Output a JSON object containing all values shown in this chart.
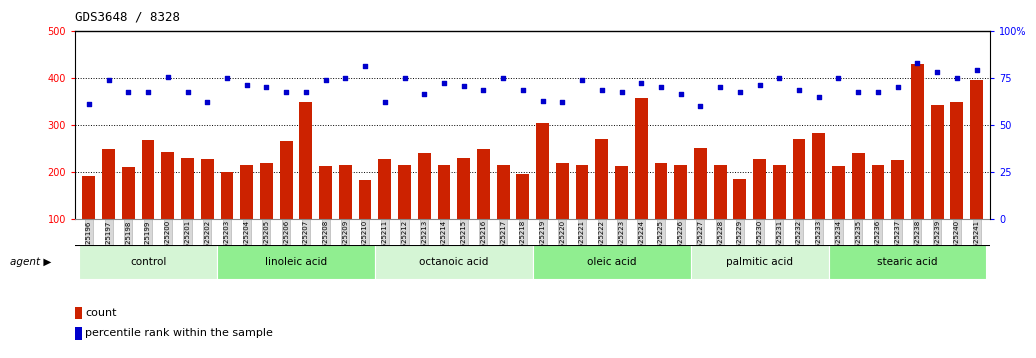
{
  "title": "GDS3648 / 8328",
  "samples": [
    "GSM525196",
    "GSM525197",
    "GSM525198",
    "GSM525199",
    "GSM525200",
    "GSM525201",
    "GSM525202",
    "GSM525203",
    "GSM525204",
    "GSM525205",
    "GSM525206",
    "GSM525207",
    "GSM525208",
    "GSM525209",
    "GSM525210",
    "GSM525211",
    "GSM525212",
    "GSM525213",
    "GSM525214",
    "GSM525215",
    "GSM525216",
    "GSM525217",
    "GSM525218",
    "GSM525219",
    "GSM525220",
    "GSM525221",
    "GSM525222",
    "GSM525223",
    "GSM525224",
    "GSM525225",
    "GSM525226",
    "GSM525227",
    "GSM525228",
    "GSM525229",
    "GSM525230",
    "GSM525231",
    "GSM525232",
    "GSM525233",
    "GSM525234",
    "GSM525235",
    "GSM525236",
    "GSM525237",
    "GSM525238",
    "GSM525239",
    "GSM525240",
    "GSM525241"
  ],
  "bar_values": [
    192,
    248,
    210,
    268,
    242,
    230,
    228,
    200,
    215,
    220,
    265,
    350,
    213,
    215,
    183,
    228,
    215,
    240,
    215,
    230,
    248,
    215,
    195,
    305,
    218,
    215,
    270,
    213,
    358,
    220,
    215,
    250,
    215,
    185,
    228,
    215,
    270,
    283,
    213,
    240,
    215,
    225,
    430,
    342,
    350,
    395
  ],
  "percentile_values": [
    345,
    395,
    370,
    370,
    403,
    370,
    350,
    400,
    385,
    380,
    370,
    370,
    395,
    400,
    425,
    348,
    400,
    365,
    390,
    383,
    375,
    400,
    375,
    352,
    350,
    395,
    375,
    370,
    390,
    380,
    365,
    340,
    380,
    370,
    385,
    400,
    375,
    360,
    400,
    370,
    370,
    382,
    432,
    413,
    400,
    418
  ],
  "groups": [
    {
      "label": "control",
      "start": 0,
      "end": 7
    },
    {
      "label": "linoleic acid",
      "start": 7,
      "end": 15
    },
    {
      "label": "octanoic acid",
      "start": 15,
      "end": 23
    },
    {
      "label": "oleic acid",
      "start": 23,
      "end": 31
    },
    {
      "label": "palmitic acid",
      "start": 31,
      "end": 38
    },
    {
      "label": "stearic acid",
      "start": 38,
      "end": 46
    }
  ],
  "group_colors": [
    "#d5f5d5",
    "#90ee90",
    "#d5f5d5",
    "#90ee90",
    "#d5f5d5",
    "#90ee90"
  ],
  "bar_color": "#cc2200",
  "scatter_color": "#0000cc",
  "ylim": [
    100,
    500
  ],
  "yticks": [
    100,
    200,
    300,
    400,
    500
  ],
  "ytick_labels_right": [
    "0",
    "25",
    "50",
    "75",
    "100%"
  ],
  "dotted_lines": [
    200,
    300,
    400
  ],
  "agent_label": "agent",
  "legend_count_label": "count",
  "legend_percentile_label": "percentile rank within the sample"
}
